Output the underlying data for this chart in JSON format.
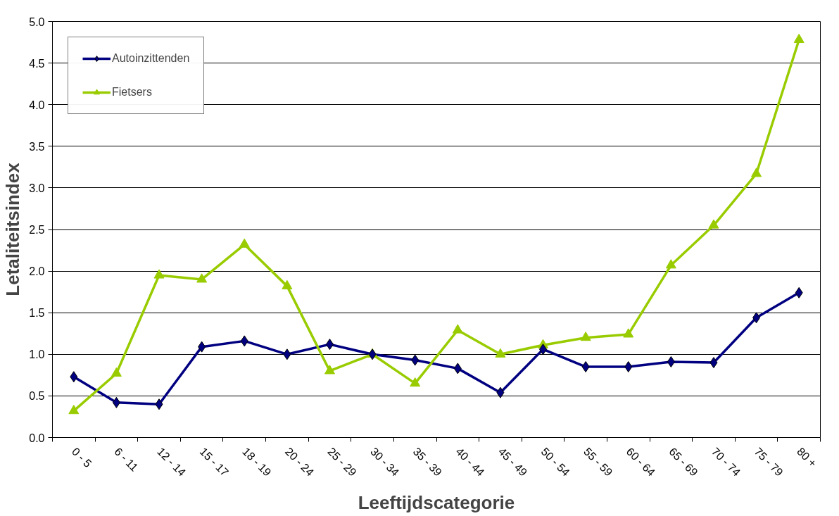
{
  "chart_data": {
    "type": "line",
    "xlabel": "Leeftijdscategorie",
    "ylabel": "Letaliteitsindex",
    "categories": [
      "0 - 5",
      "6 - 11",
      "12 - 14",
      "15 - 17",
      "18 - 19",
      "20 - 24",
      "25 - 29",
      "30 - 34",
      "35 - 39",
      "40 - 44",
      "45 - 49",
      "50 - 54",
      "55 - 59",
      "60 - 64",
      "65 - 69",
      "70 - 74",
      "75 - 79",
      "80 +"
    ],
    "series": [
      {
        "name": "Autoinzittenden",
        "color": "#000080",
        "marker": "diamond",
        "values": [
          0.73,
          0.42,
          0.4,
          1.09,
          1.16,
          1.0,
          1.12,
          1.0,
          0.93,
          0.83,
          0.54,
          1.06,
          0.85,
          0.85,
          0.91,
          0.9,
          1.44,
          1.74
        ]
      },
      {
        "name": "Fietsers",
        "color": "#99cc00",
        "marker": "triangle",
        "values": [
          0.32,
          0.77,
          1.95,
          1.9,
          2.32,
          1.82,
          0.8,
          1.0,
          0.65,
          1.29,
          1.0,
          1.11,
          1.2,
          1.24,
          2.07,
          2.55,
          3.17,
          4.78
        ]
      }
    ],
    "ylim": [
      0,
      5
    ],
    "yticks": [
      {
        "value": 0,
        "label": "0.0"
      },
      {
        "value": 0.5,
        "label": "0.5"
      },
      {
        "value": 1,
        "label": "1.0"
      },
      {
        "value": 1.5,
        "label": "1.5"
      },
      {
        "value": 2,
        "label": "2.0"
      },
      {
        "value": 2.5,
        "label": "2.5"
      },
      {
        "value": 3,
        "label": "3.0"
      },
      {
        "value": 3.5,
        "label": "3.5"
      },
      {
        "value": 4,
        "label": "4.0"
      },
      {
        "value": 4.5,
        "label": "4.5"
      },
      {
        "value": 5,
        "label": "5.0"
      }
    ],
    "grid": "y",
    "legend": "top left",
    "line_style": "solid"
  }
}
